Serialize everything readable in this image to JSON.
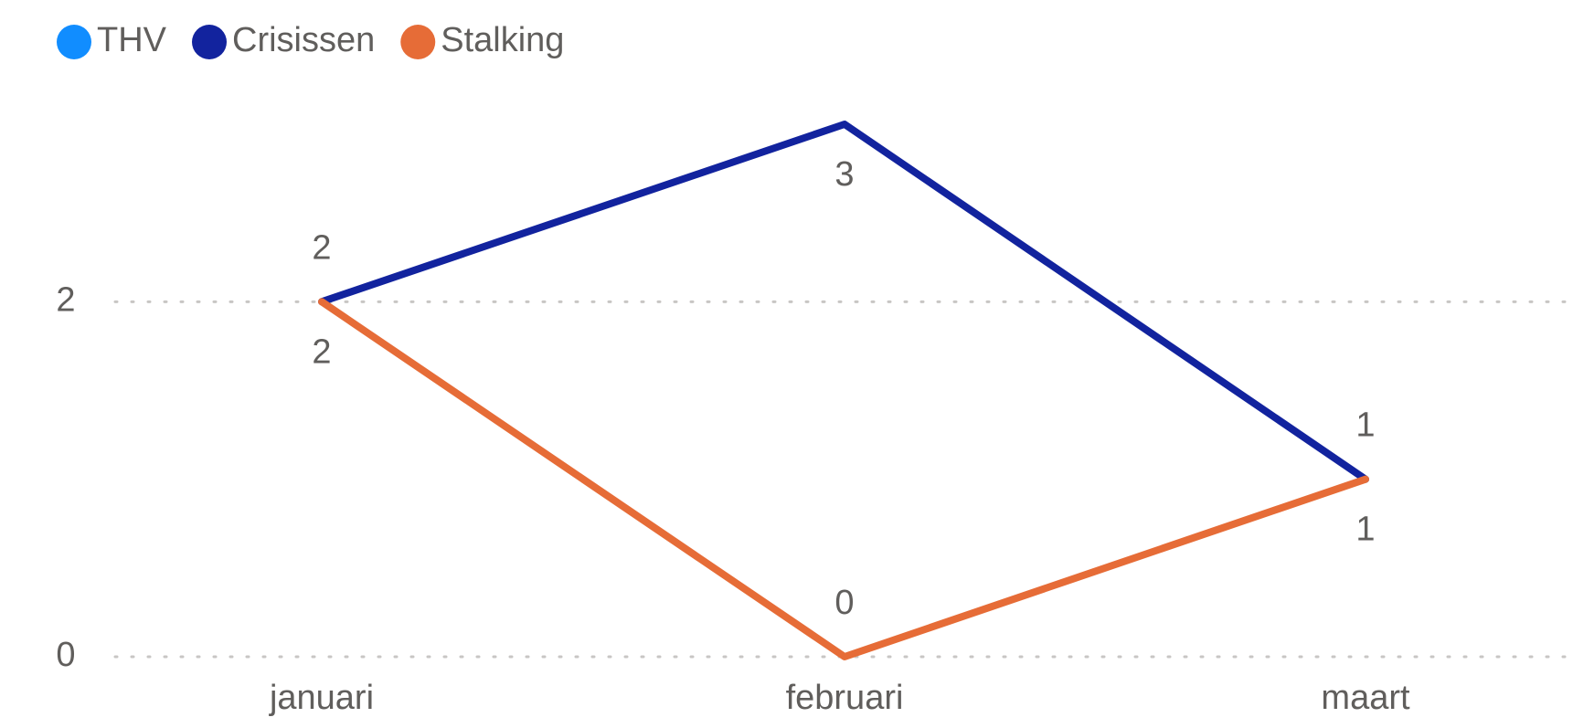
{
  "chart_data": {
    "type": "line",
    "categories": [
      "januari",
      "februari",
      "maart"
    ],
    "series": [
      {
        "name": "THV",
        "color": "#118dff",
        "values": [
          null,
          null,
          null
        ]
      },
      {
        "name": "Crisissen",
        "color": "#12239e",
        "values": [
          2,
          3,
          1
        ]
      },
      {
        "name": "Stalking",
        "color": "#e66c37",
        "values": [
          2,
          0,
          1
        ]
      }
    ],
    "ylim": [
      0,
      3
    ],
    "yticks": [
      0,
      2
    ],
    "grid": true,
    "legend": "top-left"
  }
}
